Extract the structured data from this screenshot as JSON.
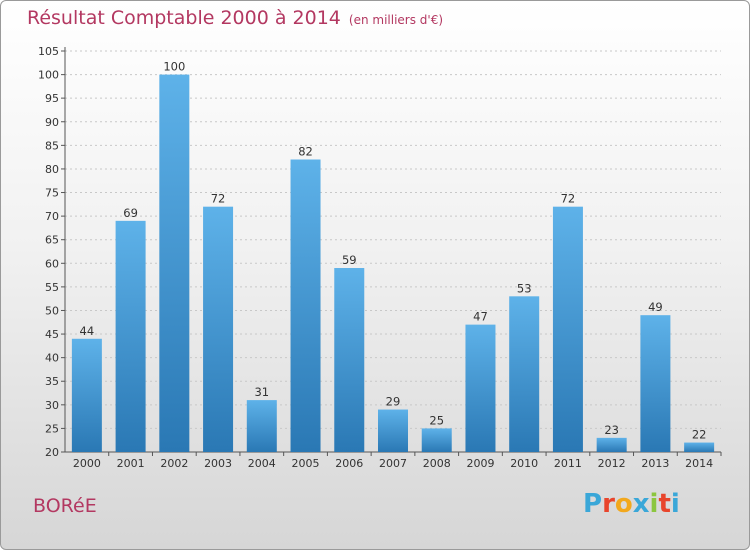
{
  "header": {
    "title": "Résultat Comptable 2000 à 2014",
    "subtitle": "(en milliers d'€)"
  },
  "footer": {
    "commune": "BORéE",
    "brand": "Proxiti",
    "brand_colors": [
      "#3aa7d8",
      "#e8452c",
      "#f2a81d",
      "#3aa7d8",
      "#8cc63f",
      "#e8452c",
      "#3aa7d8"
    ]
  },
  "colors": {
    "title": "#b33861",
    "bar_top": "#5eb2e9",
    "bar_bottom": "#2a78b4"
  },
  "chart_data": {
    "type": "bar",
    "title": "Résultat Comptable 2000 à 2014",
    "categories": [
      "2000",
      "2001",
      "2002",
      "2003",
      "2004",
      "2005",
      "2006",
      "2007",
      "2008",
      "2009",
      "2010",
      "2011",
      "2012",
      "2013",
      "2014"
    ],
    "values": [
      44,
      69,
      100,
      72,
      31,
      82,
      59,
      29,
      25,
      47,
      53,
      72,
      23,
      49,
      22
    ],
    "ylim": [
      20,
      105
    ],
    "yticks": [
      20,
      25,
      30,
      35,
      40,
      45,
      50,
      55,
      60,
      65,
      70,
      75,
      80,
      85,
      90,
      95,
      100,
      105
    ],
    "xlabel": "",
    "ylabel": "",
    "grid": true
  }
}
